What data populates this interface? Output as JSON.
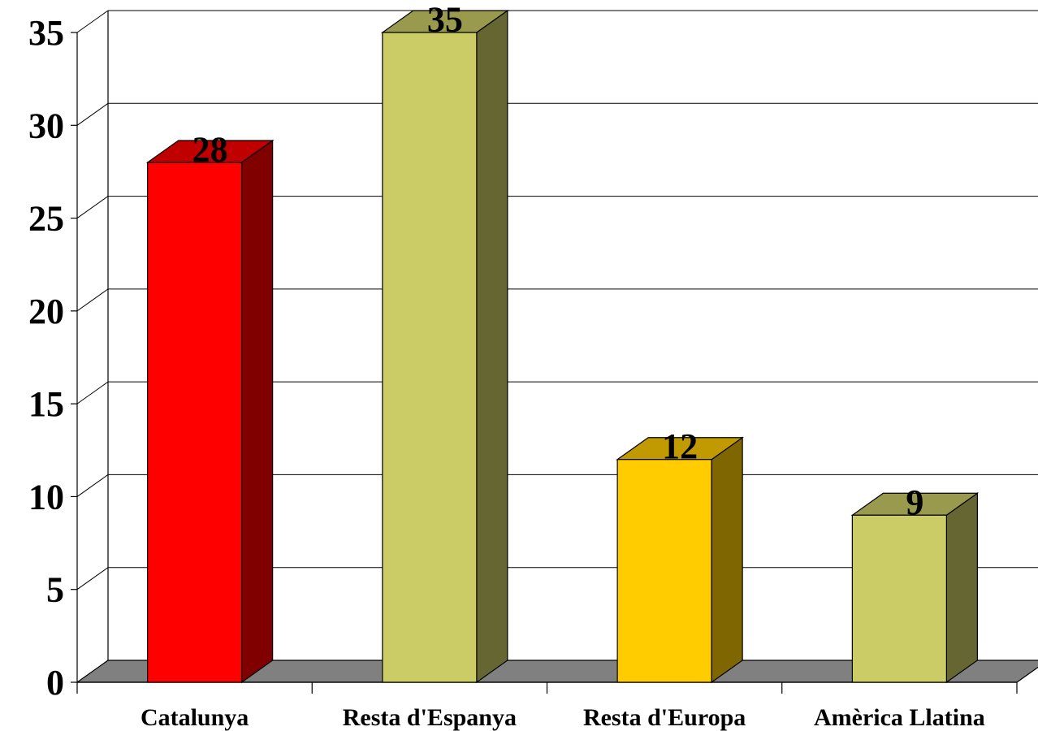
{
  "chart_data": {
    "type": "bar",
    "style": "3d-column",
    "categories": [
      "Catalunya",
      "Resta d'Espanya",
      "Resta d'Europa",
      "Amèrica Llatina"
    ],
    "values": [
      28,
      35,
      12,
      9
    ],
    "data_labels": [
      "28",
      "35",
      "12",
      "9"
    ],
    "bar_colors": [
      {
        "front": "#ff0000",
        "top": "#c00000",
        "side": "#800000"
      },
      {
        "front": "#cccc66",
        "top": "#999a4d",
        "side": "#666633"
      },
      {
        "front": "#ffcc00",
        "top": "#c09a00",
        "side": "#806600"
      },
      {
        "front": "#cccc66",
        "top": "#999a4d",
        "side": "#666633"
      }
    ],
    "floor_color": "#808080",
    "ylim": [
      0,
      35
    ],
    "yticks": [
      0,
      5,
      10,
      15,
      20,
      25,
      30,
      35
    ],
    "ytick_labels": [
      "0",
      "5",
      "10",
      "15",
      "20",
      "25",
      "30",
      "35"
    ],
    "grid": true,
    "legend": "none",
    "title": "",
    "xlabel": "",
    "ylabel": ""
  }
}
